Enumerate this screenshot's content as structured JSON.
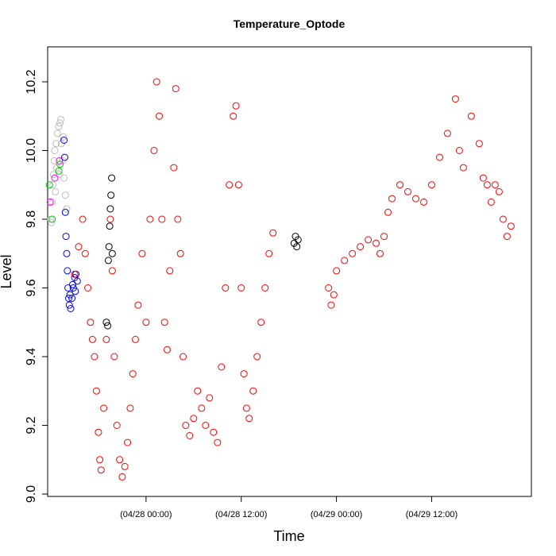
{
  "chart_data": {
    "type": "scatter",
    "title": "Temperature_Optode",
    "xlabel": "Time",
    "ylabel": "Level",
    "x_is_time": true,
    "xlim": [
      "2024-04-27T11:36",
      "2024-04-30T00:34"
    ],
    "ylim": [
      9.0,
      10.2
    ],
    "y_ticks": [
      9.0,
      9.2,
      9.4,
      9.6,
      9.8,
      10.0,
      10.2
    ],
    "x_ticks": [
      {
        "t": "2024-04-28T00:00",
        "label": "(04/28 00:00)"
      },
      {
        "t": "2024-04-28T12:00",
        "label": "(04/28 12:00)"
      },
      {
        "t": "2024-04-29T00:00",
        "label": "(04/29 00:00)"
      },
      {
        "t": "2024-04-29T12:00",
        "label": "(04/29 12:00)"
      }
    ],
    "marker": "open-circle",
    "grid": false,
    "legend": "none",
    "series": [
      {
        "color": "#bebebe",
        "points": [
          [
            "2024-04-27T12:00",
            9.8
          ],
          [
            "2024-04-27T12:10",
            9.85
          ],
          [
            "2024-04-27T12:15",
            9.9
          ],
          [
            "2024-04-27T12:20",
            9.93
          ],
          [
            "2024-04-27T12:25",
            9.97
          ],
          [
            "2024-04-27T12:30",
            10.0
          ],
          [
            "2024-04-27T12:40",
            10.02
          ],
          [
            "2024-04-27T12:50",
            10.05
          ],
          [
            "2024-04-27T13:00",
            10.07
          ],
          [
            "2024-04-27T13:10",
            10.08
          ],
          [
            "2024-04-27T13:20",
            10.02
          ],
          [
            "2024-04-27T13:30",
            9.97
          ],
          [
            "2024-04-27T13:40",
            9.92
          ],
          [
            "2024-04-27T13:50",
            9.87
          ],
          [
            "2024-04-27T14:00",
            9.83
          ],
          [
            "2024-04-27T12:05",
            9.79
          ],
          [
            "2024-04-27T12:35",
            9.88
          ],
          [
            "2024-04-27T13:05",
            9.93
          ],
          [
            "2024-04-27T12:45",
            9.95
          ],
          [
            "2024-04-27T13:15",
            10.09
          ],
          [
            "2024-04-27T13:35",
            10.04
          ]
        ]
      },
      {
        "color": "#00cd00",
        "points": [
          [
            "2024-04-27T11:50",
            9.9
          ],
          [
            "2024-04-27T12:10",
            9.8
          ],
          [
            "2024-04-27T13:00",
            9.94
          ],
          [
            "2024-04-27T13:10",
            9.96
          ]
        ]
      },
      {
        "color": "#ff00ff",
        "points": [
          [
            "2024-04-27T11:55",
            9.85
          ],
          [
            "2024-04-27T13:05",
            9.97
          ],
          [
            "2024-04-27T12:30",
            9.92
          ]
        ]
      },
      {
        "color": "#0000ff",
        "points": [
          [
            "2024-04-27T13:40",
            10.03
          ],
          [
            "2024-04-27T13:45",
            9.98
          ],
          [
            "2024-04-27T13:50",
            9.82
          ],
          [
            "2024-04-27T13:55",
            9.75
          ],
          [
            "2024-04-27T14:00",
            9.7
          ],
          [
            "2024-04-27T14:05",
            9.65
          ],
          [
            "2024-04-27T14:10",
            9.6
          ],
          [
            "2024-04-27T14:15",
            9.57
          ],
          [
            "2024-04-27T14:20",
            9.55
          ],
          [
            "2024-04-27T14:30",
            9.54
          ],
          [
            "2024-04-27T14:40",
            9.57
          ],
          [
            "2024-04-27T14:50",
            9.6
          ],
          [
            "2024-04-27T15:00",
            9.63
          ],
          [
            "2024-04-27T15:10",
            9.64
          ],
          [
            "2024-04-27T15:20",
            9.62
          ],
          [
            "2024-04-27T14:25",
            9.58
          ],
          [
            "2024-04-27T14:45",
            9.61
          ],
          [
            "2024-04-27T15:05",
            9.59
          ]
        ]
      },
      {
        "color": "#000000",
        "points": [
          [
            "2024-04-27T19:00",
            9.5
          ],
          [
            "2024-04-27T19:10",
            9.49
          ],
          [
            "2024-04-27T19:15",
            9.68
          ],
          [
            "2024-04-27T19:20",
            9.72
          ],
          [
            "2024-04-27T19:25",
            9.78
          ],
          [
            "2024-04-27T19:30",
            9.83
          ],
          [
            "2024-04-27T19:35",
            9.87
          ],
          [
            "2024-04-27T19:40",
            9.92
          ],
          [
            "2024-04-27T19:45",
            9.7
          ],
          [
            "2024-04-28T18:40",
            9.73
          ],
          [
            "2024-04-28T18:50",
            9.75
          ],
          [
            "2024-04-28T19:00",
            9.72
          ],
          [
            "2024-04-28T19:10",
            9.74
          ]
        ]
      },
      {
        "color": "#ff0000",
        "points": [
          [
            "2024-04-27T15:00",
            9.64
          ],
          [
            "2024-04-27T15:30",
            9.72
          ],
          [
            "2024-04-27T16:00",
            9.8
          ],
          [
            "2024-04-27T16:20",
            9.7
          ],
          [
            "2024-04-27T16:40",
            9.6
          ],
          [
            "2024-04-27T17:00",
            9.5
          ],
          [
            "2024-04-27T17:15",
            9.45
          ],
          [
            "2024-04-27T17:30",
            9.4
          ],
          [
            "2024-04-27T17:45",
            9.3
          ],
          [
            "2024-04-27T18:00",
            9.18
          ],
          [
            "2024-04-27T18:10",
            9.1
          ],
          [
            "2024-04-27T18:20",
            9.07
          ],
          [
            "2024-04-27T18:40",
            9.25
          ],
          [
            "2024-04-27T19:00",
            9.45
          ],
          [
            "2024-04-27T19:30",
            9.8
          ],
          [
            "2024-04-27T19:45",
            9.65
          ],
          [
            "2024-04-27T20:00",
            9.4
          ],
          [
            "2024-04-27T20:20",
            9.2
          ],
          [
            "2024-04-27T20:40",
            9.1
          ],
          [
            "2024-04-27T21:00",
            9.05
          ],
          [
            "2024-04-27T21:20",
            9.08
          ],
          [
            "2024-04-27T21:40",
            9.15
          ],
          [
            "2024-04-27T22:00",
            9.25
          ],
          [
            "2024-04-27T22:20",
            9.35
          ],
          [
            "2024-04-27T22:40",
            9.45
          ],
          [
            "2024-04-27T23:00",
            9.55
          ],
          [
            "2024-04-27T23:30",
            9.7
          ],
          [
            "2024-04-28T00:00",
            9.5
          ],
          [
            "2024-04-28T00:30",
            9.8
          ],
          [
            "2024-04-28T01:00",
            10.0
          ],
          [
            "2024-04-28T01:20",
            10.2
          ],
          [
            "2024-04-28T01:40",
            10.1
          ],
          [
            "2024-04-28T02:00",
            9.8
          ],
          [
            "2024-04-28T02:20",
            9.5
          ],
          [
            "2024-04-28T02:40",
            9.42
          ],
          [
            "2024-04-28T03:00",
            9.65
          ],
          [
            "2024-04-28T03:30",
            9.95
          ],
          [
            "2024-04-28T03:45",
            10.18
          ],
          [
            "2024-04-28T04:00",
            9.8
          ],
          [
            "2024-04-28T04:20",
            9.7
          ],
          [
            "2024-04-28T04:40",
            9.4
          ],
          [
            "2024-04-28T05:00",
            9.2
          ],
          [
            "2024-04-28T05:30",
            9.17
          ],
          [
            "2024-04-28T06:00",
            9.22
          ],
          [
            "2024-04-28T06:30",
            9.3
          ],
          [
            "2024-04-28T07:00",
            9.25
          ],
          [
            "2024-04-28T07:30",
            9.2
          ],
          [
            "2024-04-28T08:00",
            9.28
          ],
          [
            "2024-04-28T08:30",
            9.18
          ],
          [
            "2024-04-28T09:00",
            9.15
          ],
          [
            "2024-04-28T09:30",
            9.37
          ],
          [
            "2024-04-28T10:00",
            9.6
          ],
          [
            "2024-04-28T10:30",
            9.9
          ],
          [
            "2024-04-28T11:00",
            10.1
          ],
          [
            "2024-04-28T11:20",
            10.13
          ],
          [
            "2024-04-28T11:40",
            9.9
          ],
          [
            "2024-04-28T12:00",
            9.6
          ],
          [
            "2024-04-28T12:20",
            9.35
          ],
          [
            "2024-04-28T12:40",
            9.25
          ],
          [
            "2024-04-28T13:00",
            9.22
          ],
          [
            "2024-04-28T13:30",
            9.3
          ],
          [
            "2024-04-28T14:00",
            9.4
          ],
          [
            "2024-04-28T14:30",
            9.5
          ],
          [
            "2024-04-28T15:00",
            9.6
          ],
          [
            "2024-04-28T15:30",
            9.7
          ],
          [
            "2024-04-28T16:00",
            9.76
          ],
          [
            "2024-04-28T23:00",
            9.6
          ],
          [
            "2024-04-28T23:20",
            9.55
          ],
          [
            "2024-04-28T23:40",
            9.58
          ],
          [
            "2024-04-29T00:00",
            9.65
          ],
          [
            "2024-04-29T01:00",
            9.68
          ],
          [
            "2024-04-29T02:00",
            9.7
          ],
          [
            "2024-04-29T03:00",
            9.72
          ],
          [
            "2024-04-29T04:00",
            9.74
          ],
          [
            "2024-04-29T05:00",
            9.73
          ],
          [
            "2024-04-29T05:30",
            9.7
          ],
          [
            "2024-04-29T06:00",
            9.75
          ],
          [
            "2024-04-29T06:30",
            9.82
          ],
          [
            "2024-04-29T07:00",
            9.86
          ],
          [
            "2024-04-29T08:00",
            9.9
          ],
          [
            "2024-04-29T09:00",
            9.88
          ],
          [
            "2024-04-29T10:00",
            9.86
          ],
          [
            "2024-04-29T11:00",
            9.85
          ],
          [
            "2024-04-29T12:00",
            9.9
          ],
          [
            "2024-04-29T13:00",
            9.98
          ],
          [
            "2024-04-29T14:00",
            10.05
          ],
          [
            "2024-04-29T15:00",
            10.15
          ],
          [
            "2024-04-29T15:30",
            10.0
          ],
          [
            "2024-04-29T16:00",
            9.95
          ],
          [
            "2024-04-29T17:00",
            10.1
          ],
          [
            "2024-04-29T18:00",
            10.02
          ],
          [
            "2024-04-29T18:30",
            9.92
          ],
          [
            "2024-04-29T19:00",
            9.9
          ],
          [
            "2024-04-29T19:30",
            9.85
          ],
          [
            "2024-04-29T20:00",
            9.9
          ],
          [
            "2024-04-29T20:30",
            9.88
          ],
          [
            "2024-04-29T21:00",
            9.8
          ],
          [
            "2024-04-29T21:30",
            9.75
          ],
          [
            "2024-04-29T22:00",
            9.78
          ]
        ]
      }
    ]
  }
}
